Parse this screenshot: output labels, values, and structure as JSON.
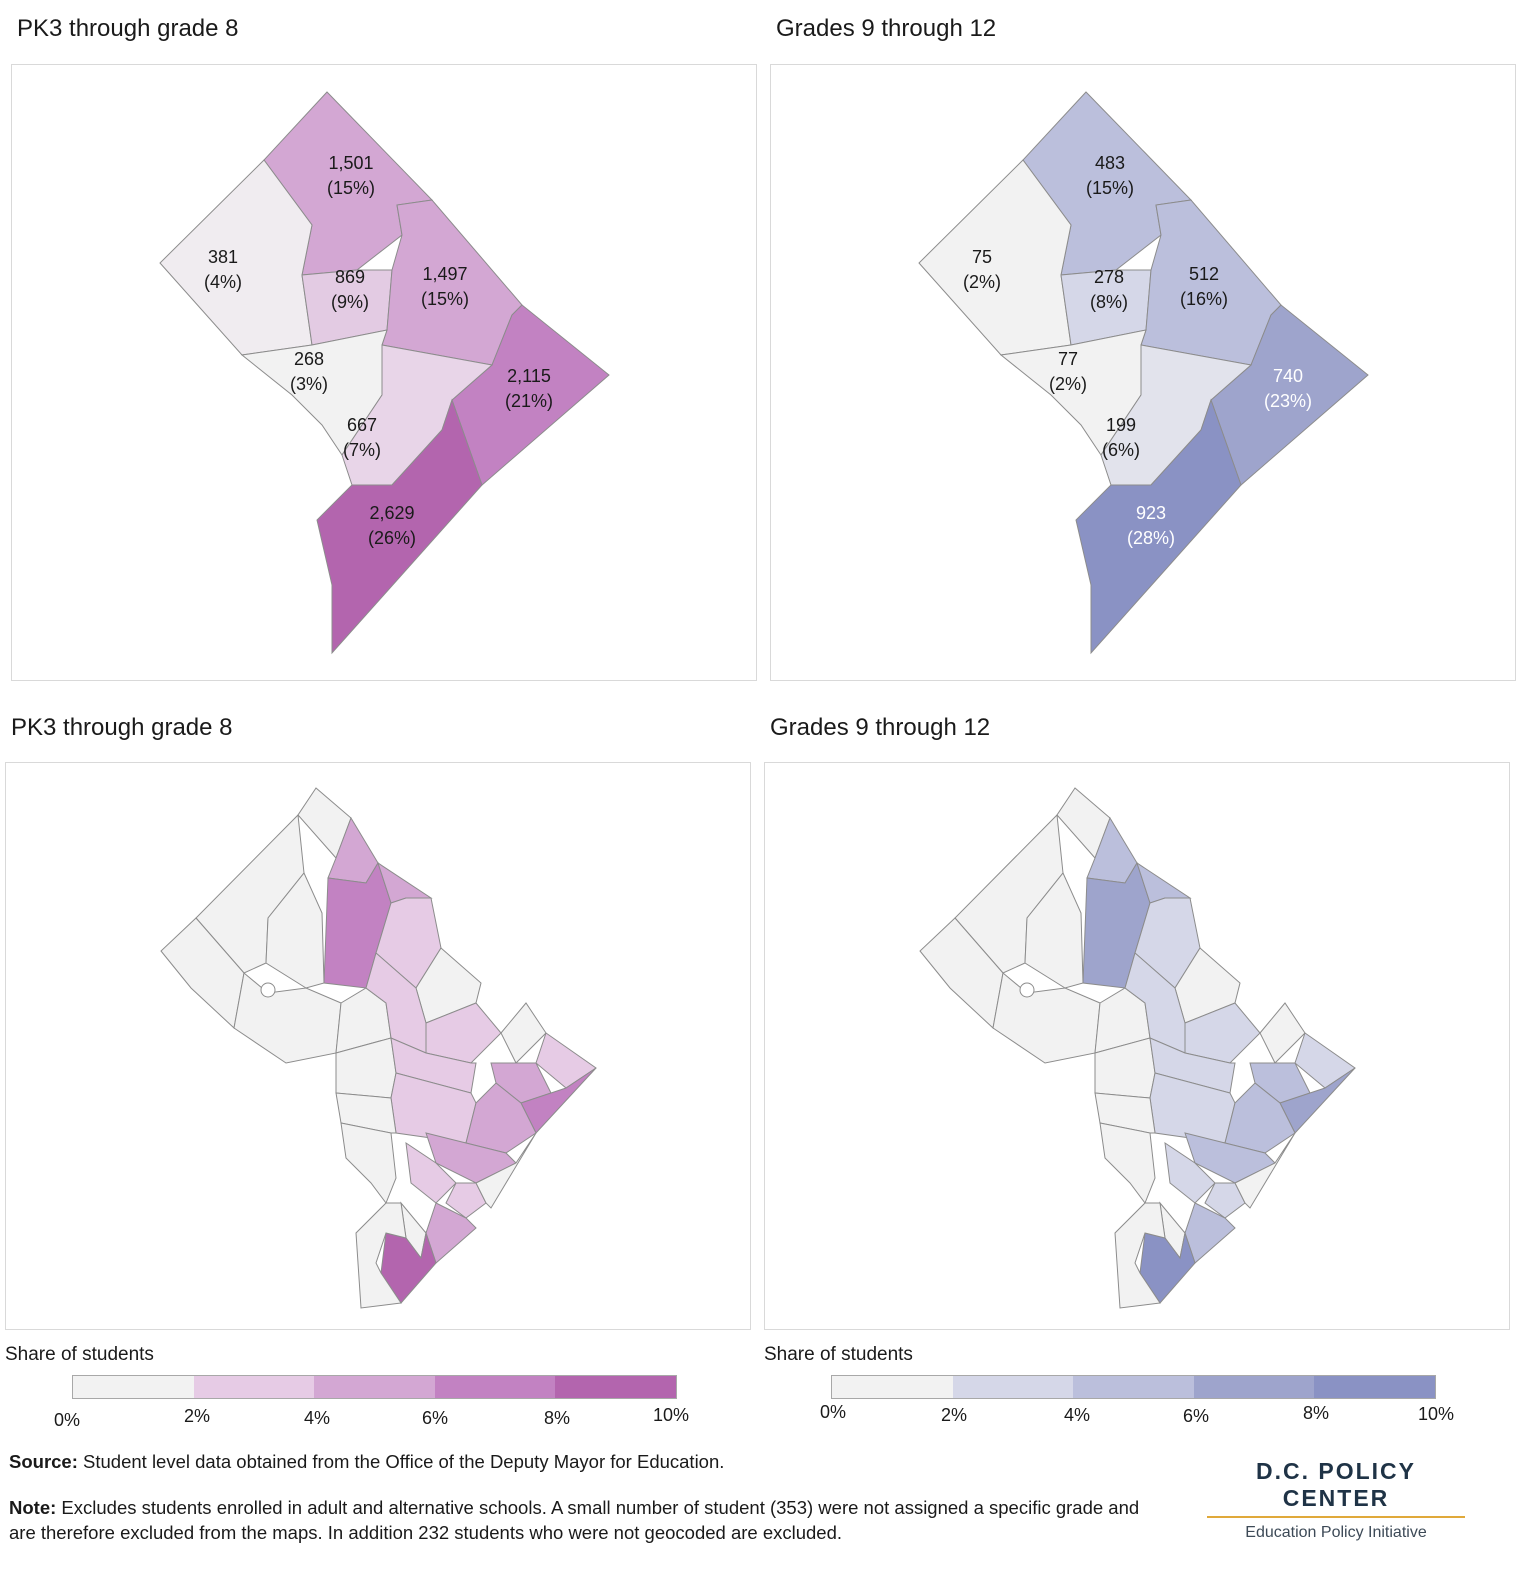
{
  "panels": [
    {
      "id": "top-left",
      "title": "PK3 through grade 8"
    },
    {
      "id": "top-right",
      "title": "Grades 9 through 12"
    },
    {
      "id": "bottom-left",
      "title": "PK3 through grade 8"
    },
    {
      "id": "bottom-right",
      "title": "Grades 9 through 12"
    }
  ],
  "maps": {
    "ward_pk8": {
      "labels": [
        {
          "value": "1,501",
          "pct": "(15%)",
          "fill": "#d3a7d3"
        },
        {
          "value": "381",
          "pct": "(4%)",
          "fill": "#f0ecf0"
        },
        {
          "value": "869",
          "pct": "(9%)",
          "fill": "#e3cbe3"
        },
        {
          "value": "1,497",
          "pct": "(15%)",
          "fill": "#d3a7d3"
        },
        {
          "value": "268",
          "pct": "(3%)",
          "fill": "#f2f2f2"
        },
        {
          "value": "2,115",
          "pct": "(21%)",
          "fill": "#c282c2"
        },
        {
          "value": "667",
          "pct": "(7%)",
          "fill": "#e8d5e8"
        },
        {
          "value": "2,629",
          "pct": "(26%)",
          "fill": "#b365ae"
        }
      ]
    },
    "ward_9_12": {
      "labels": [
        {
          "value": "483",
          "pct": "(15%)",
          "fill": "#bbbfdc"
        },
        {
          "value": "75",
          "pct": "(2%)",
          "fill": "#f2f2f2"
        },
        {
          "value": "278",
          "pct": "(8%)",
          "fill": "#d5d7e8"
        },
        {
          "value": "512",
          "pct": "(16%)",
          "fill": "#bbbfdc"
        },
        {
          "value": "77",
          "pct": "(2%)",
          "fill": "#f2f2f2"
        },
        {
          "value": "740",
          "pct": "(23%)",
          "fill": "#9ea4cc"
        },
        {
          "value": "199",
          "pct": "(6%)",
          "fill": "#e2e3ec"
        },
        {
          "value": "923",
          "pct": "(28%)",
          "fill": "#8a92c4"
        }
      ]
    }
  },
  "legends": [
    {
      "title": "Share of students",
      "colors": [
        "#f2f2f2",
        "#e6cbe5",
        "#d3a7d3",
        "#c282c2",
        "#b365ae"
      ],
      "ticks": [
        "0%",
        "2%",
        "4%",
        "6%",
        "8%",
        "10%"
      ]
    },
    {
      "title": "Share of students",
      "colors": [
        "#f2f2f2",
        "#d5d7e8",
        "#bbbfdc",
        "#9ea4cc",
        "#8a92c4"
      ],
      "ticks": [
        "0%",
        "2%",
        "4%",
        "6%",
        "8%",
        "10%"
      ]
    }
  ],
  "footer": {
    "source_label": "Source:",
    "source_text": " Student level data obtained from the Office of the Deputy Mayor for Education.",
    "note_label": "Note:",
    "note_text": " Excludes students enrolled in adult and alternative schools. A small number of student (353) were not assigned a specific grade and are therefore excluded from the maps. In addition 232 students who were not geocoded are excluded."
  },
  "brand": {
    "name": "D.C. POLICY CENTER",
    "subtitle": "Education Policy Initiative"
  }
}
